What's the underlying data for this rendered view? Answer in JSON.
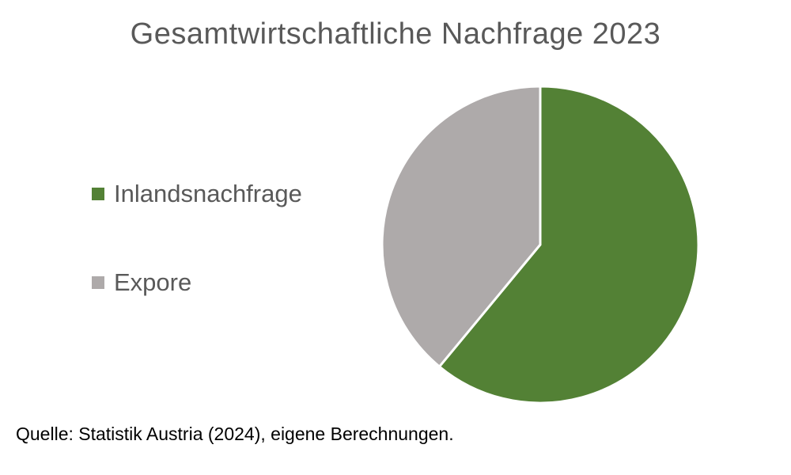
{
  "chart_data": {
    "type": "pie",
    "title": "Gesamtwirtschaftliche Nachfrage 2023",
    "categories": [
      "Inlandsnachfrage",
      "Expore"
    ],
    "values": [
      61,
      39
    ],
    "unit": "%",
    "colors": [
      "#538135",
      "#AEAAAA"
    ],
    "start_angle_deg": 0,
    "direction": "clockwise",
    "legend_position": "left",
    "slice_border_color": "#ffffff"
  },
  "source_note": "Quelle: Statistik Austria (2024), eigene Berechnungen."
}
